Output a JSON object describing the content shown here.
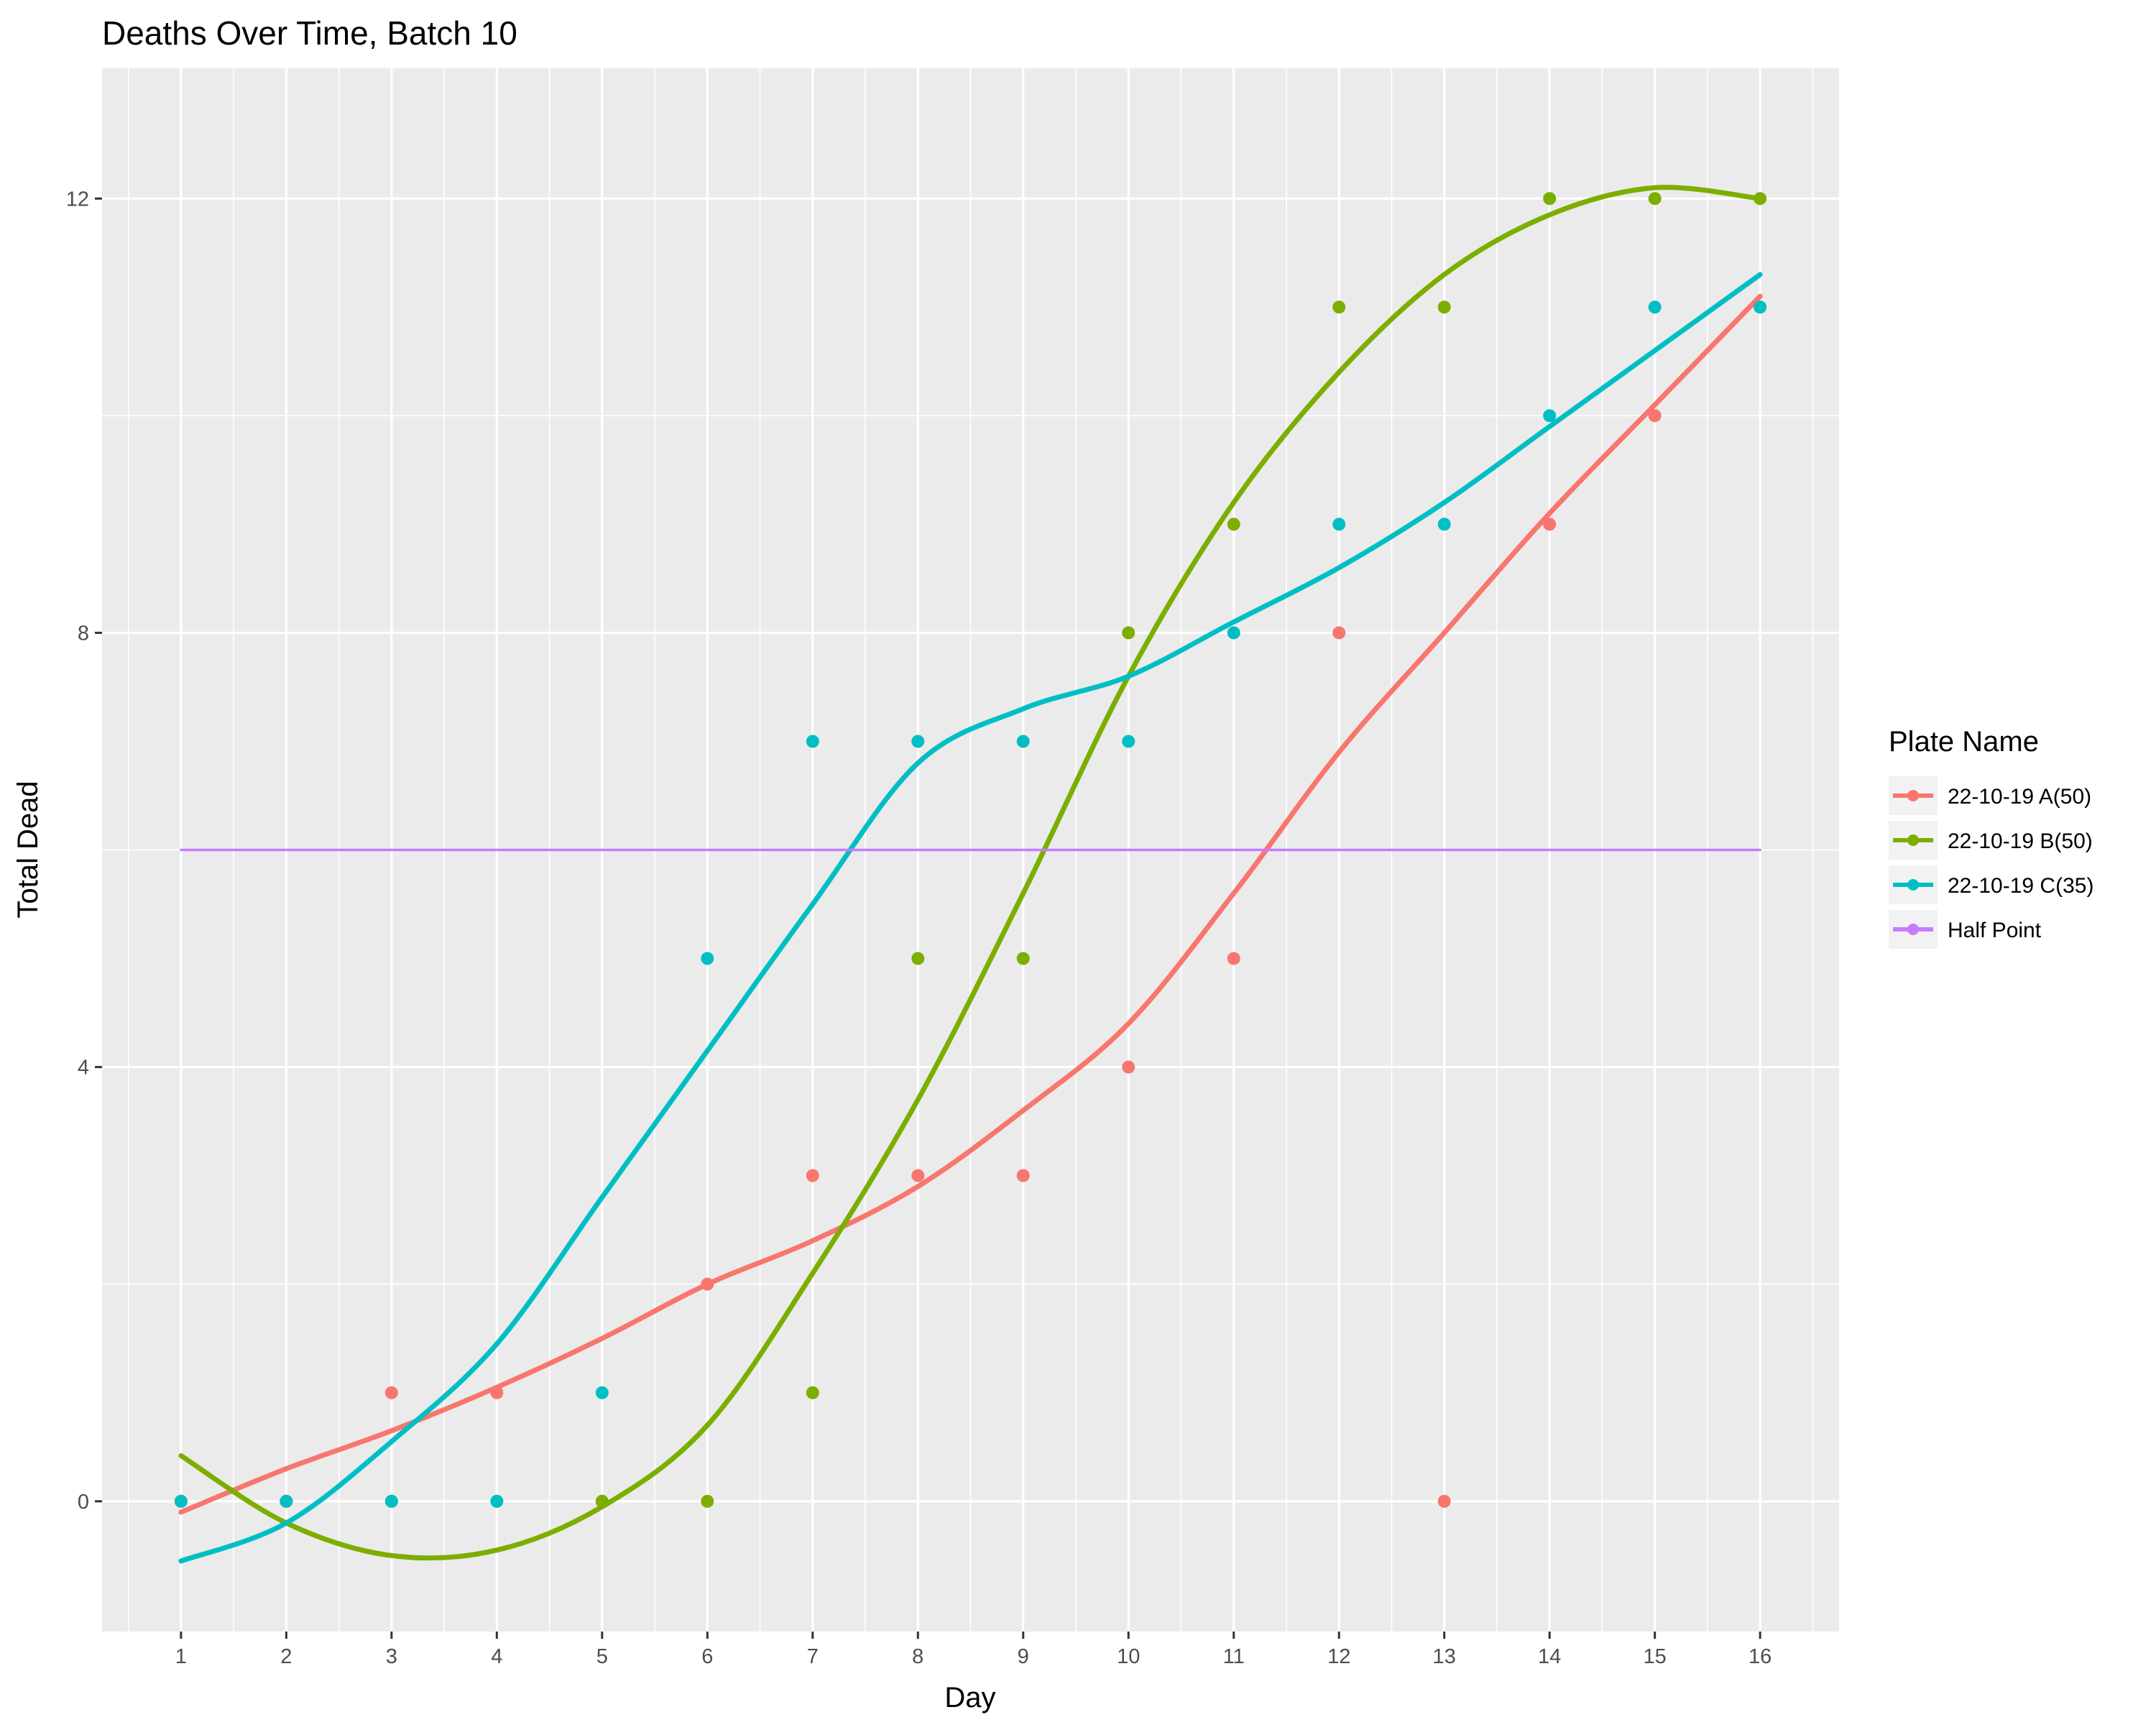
{
  "chart_data": {
    "type": "line",
    "title": "Deaths Over Time, Batch 10",
    "xlabel": "Day",
    "ylabel": "Total Dead",
    "x_ticks": [
      1,
      2,
      3,
      4,
      5,
      6,
      7,
      8,
      9,
      10,
      11,
      12,
      13,
      14,
      15,
      16
    ],
    "y_ticks": [
      0,
      4,
      8,
      12
    ],
    "xlim": [
      0.25,
      16.75
    ],
    "ylim": [
      -1.2,
      13.2
    ],
    "grid": true,
    "legend": {
      "title": "Plate Name",
      "placement": "right"
    },
    "series": [
      {
        "name": "22-10-19 A(50)",
        "color": "#f8766d",
        "x": [
          1,
          2,
          3,
          4,
          5,
          6,
          7,
          8,
          9,
          10,
          11,
          12,
          13,
          14,
          15,
          16
        ],
        "points": [
          0,
          0,
          1,
          1,
          0,
          2,
          3,
          3,
          3,
          4,
          5,
          8,
          0,
          9,
          10,
          11
        ],
        "smooth": [
          -0.1,
          0.3,
          0.65,
          1.05,
          1.5,
          2.0,
          2.4,
          2.9,
          3.6,
          4.4,
          5.6,
          6.9,
          8.0,
          9.1,
          10.1,
          11.1
        ]
      },
      {
        "name": "22-10-19 B(50)",
        "color": "#7cae00",
        "x": [
          1,
          2,
          3,
          4,
          5,
          6,
          7,
          8,
          9,
          10,
          11,
          12,
          13,
          14,
          15,
          16
        ],
        "points": [
          0,
          0,
          0,
          0,
          0,
          0,
          1,
          5,
          5,
          8,
          9,
          11,
          11,
          12,
          12,
          12
        ],
        "smooth": [
          0.42,
          -0.2,
          -0.5,
          -0.45,
          -0.05,
          0.7,
          2.1,
          3.7,
          5.6,
          7.6,
          9.2,
          10.4,
          11.3,
          11.85,
          12.1,
          12.0
        ]
      },
      {
        "name": "22-10-19 C(35)",
        "color": "#00bfc4",
        "x": [
          1,
          2,
          3,
          4,
          5,
          6,
          7,
          8,
          9,
          10,
          11,
          12,
          13,
          14,
          15,
          16
        ],
        "points": [
          0,
          0,
          0,
          0,
          1,
          5,
          7,
          7,
          7,
          7,
          8,
          9,
          9,
          10,
          11,
          11
        ],
        "smooth": [
          -0.55,
          -0.2,
          0.55,
          1.45,
          2.8,
          4.15,
          5.5,
          6.8,
          7.3,
          7.6,
          8.1,
          8.6,
          9.2,
          9.9,
          10.6,
          11.3
        ]
      },
      {
        "name": "Half Point",
        "color": "#c77cff",
        "x": [
          1,
          16
        ],
        "points": [],
        "smooth": [
          6,
          6
        ]
      }
    ]
  }
}
